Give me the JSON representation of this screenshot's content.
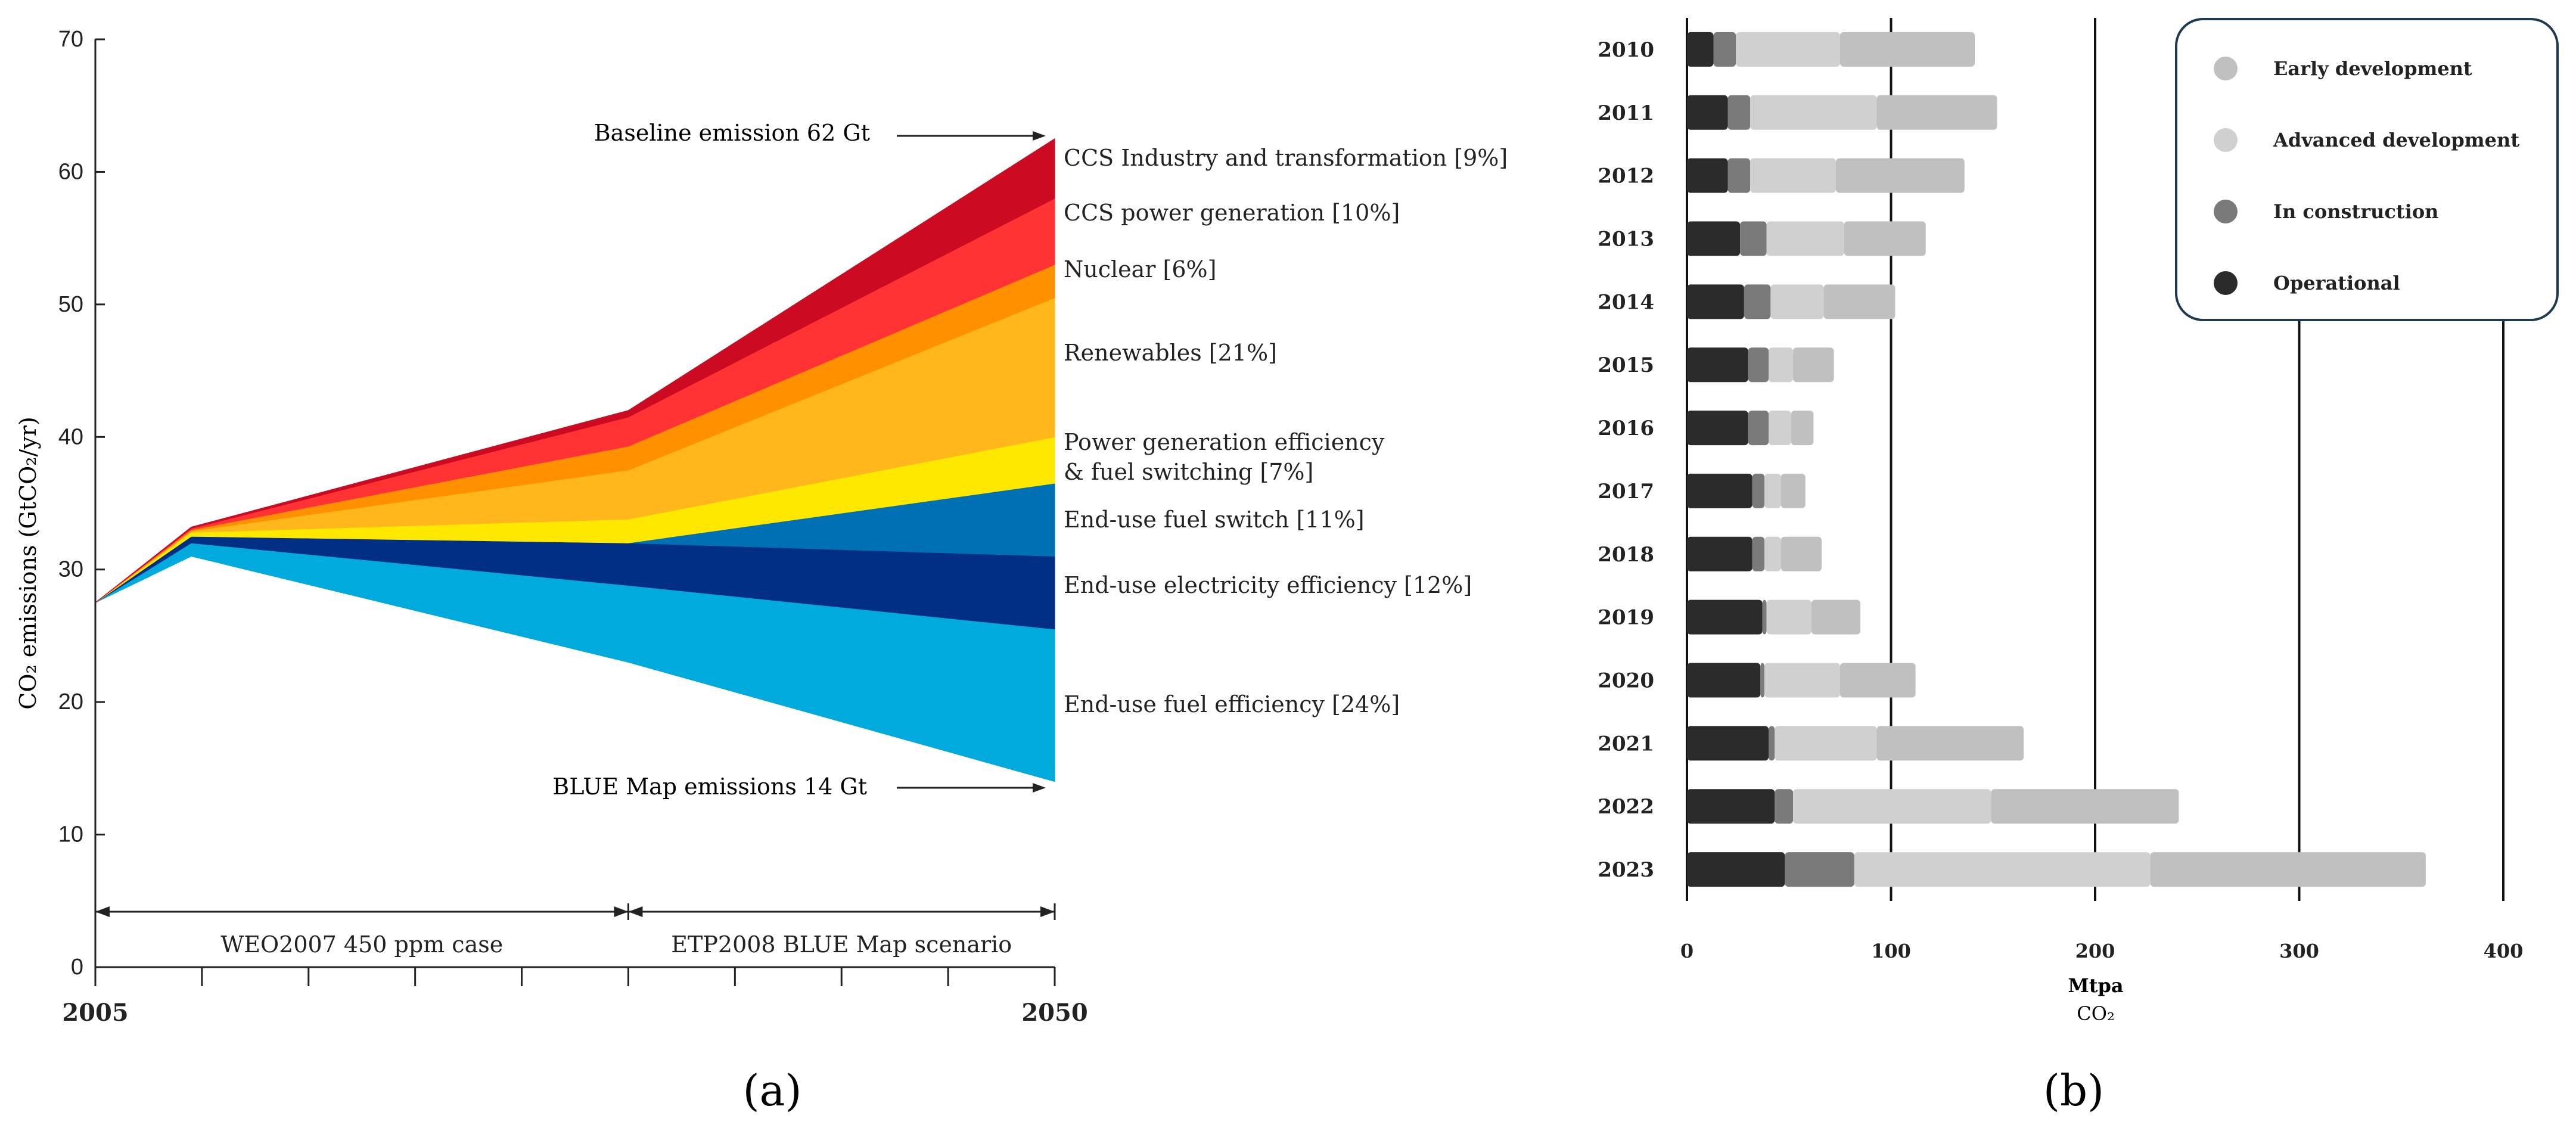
{
  "chart_data": [
    {
      "type": "area",
      "panel_label": "(a)",
      "ylabel": "CO₂ emissions (GtCO₂/yr)",
      "ylim": [
        0,
        70
      ],
      "y_ticks": [
        "0",
        "10",
        "20",
        "30",
        "40",
        "50",
        "60",
        "70"
      ],
      "y_tick_values": [
        0,
        10,
        20,
        30,
        40,
        50,
        60,
        70
      ],
      "x_tick_labels": [
        "2005",
        "2050"
      ],
      "x_knots": [
        2005,
        2009.5,
        2030,
        2050
      ],
      "periods": [
        {
          "label": "WEO2007 450 ppm case",
          "from": 2005,
          "to": 2030
        },
        {
          "label": "ETP2008  BLUE Map scenario",
          "from": 2030,
          "to": 2050
        }
      ],
      "annotations": {
        "baseline": "Baseline emission 62 Gt",
        "blue_map": "BLUE Map emissions 14 Gt"
      },
      "layers": [
        {
          "name": "End-use fuel efficiency [24%]",
          "color": "#00aadd",
          "from": [
            27.5,
            31,
            23,
            14
          ],
          "to": [
            27.5,
            32,
            28.8,
            25.5
          ]
        },
        {
          "name": "End-use electricity efficiency [12%]",
          "color": "#002f85",
          "from": [
            27.5,
            32,
            28.8,
            25.5
          ],
          "to": [
            27.5,
            32.5,
            32,
            31
          ]
        },
        {
          "name": "End-use fuel switch [11%]",
          "color": "#0070b4",
          "from": [
            27.5,
            32.5,
            32,
            31
          ],
          "to": [
            27.5,
            32.5,
            32,
            36.5
          ]
        },
        {
          "name": "Power generation efficiency\n& fuel switching [7%]",
          "color": "#ffe800",
          "from": [
            27.5,
            32.5,
            32,
            36.5
          ],
          "to": [
            27.5,
            32.8,
            33.8,
            40
          ]
        },
        {
          "name": "Renewables [21%]",
          "color": "#ffb71c",
          "from": [
            27.5,
            32.8,
            33.8,
            40
          ],
          "to": [
            27.5,
            32.9,
            37.5,
            50.5
          ]
        },
        {
          "name": "Nuclear [6%]",
          "color": "#ff9000",
          "from": [
            27.5,
            32.9,
            37.5,
            50.5
          ],
          "to": [
            27.5,
            33,
            39.3,
            53
          ]
        },
        {
          "name": "CCS power generation [10%]",
          "color": "#ff3333",
          "from": [
            27.5,
            33,
            39.3,
            53
          ],
          "to": [
            27.5,
            33.1,
            41.5,
            58
          ]
        },
        {
          "name": "CCS Industry and transformation [9%]",
          "color": "#cc0a22",
          "from": [
            27.5,
            33.1,
            41.5,
            58
          ],
          "to": [
            27.5,
            33.2,
            42,
            62.5
          ]
        }
      ]
    },
    {
      "type": "bar",
      "stacked": true,
      "orientation": "horizontal",
      "panel_label": "(b)",
      "xlabel": "Mtpa",
      "xlabel_sub": "CO₂",
      "xlim": [
        0,
        400
      ],
      "x_ticks": [
        "0",
        "100",
        "200",
        "300",
        "400"
      ],
      "x_tick_values": [
        0,
        100,
        200,
        300,
        400
      ],
      "categories": [
        "2010",
        "2011",
        "2012",
        "2013",
        "2014",
        "2015",
        "2016",
        "2017",
        "2018",
        "2019",
        "2020",
        "2021",
        "2022",
        "2023"
      ],
      "series": [
        {
          "name": "Operational",
          "color": "#2b2b2b",
          "values": [
            13,
            20,
            20,
            26,
            28,
            30,
            30,
            32,
            32,
            37,
            36,
            40,
            43,
            48
          ]
        },
        {
          "name": "In construction",
          "color": "#7a7a7a",
          "values": [
            11,
            11,
            11,
            13,
            13,
            10,
            10,
            6,
            6,
            2,
            2,
            3,
            9,
            34
          ]
        },
        {
          "name": "Advanced development",
          "color": "#d0d0d0",
          "values": [
            51,
            62,
            42,
            38,
            26,
            12,
            11,
            8,
            8,
            22,
            37,
            50,
            97,
            145
          ]
        },
        {
          "name": "Early development",
          "color": "#c0c0c0",
          "values": [
            66,
            59,
            63,
            40,
            35,
            20,
            11,
            12,
            20,
            24,
            37,
            72,
            92,
            135
          ]
        }
      ],
      "legend": {
        "placement": "top-right",
        "order": [
          "Early development",
          "Advanced development",
          "In construction",
          "Operational"
        ]
      }
    }
  ]
}
